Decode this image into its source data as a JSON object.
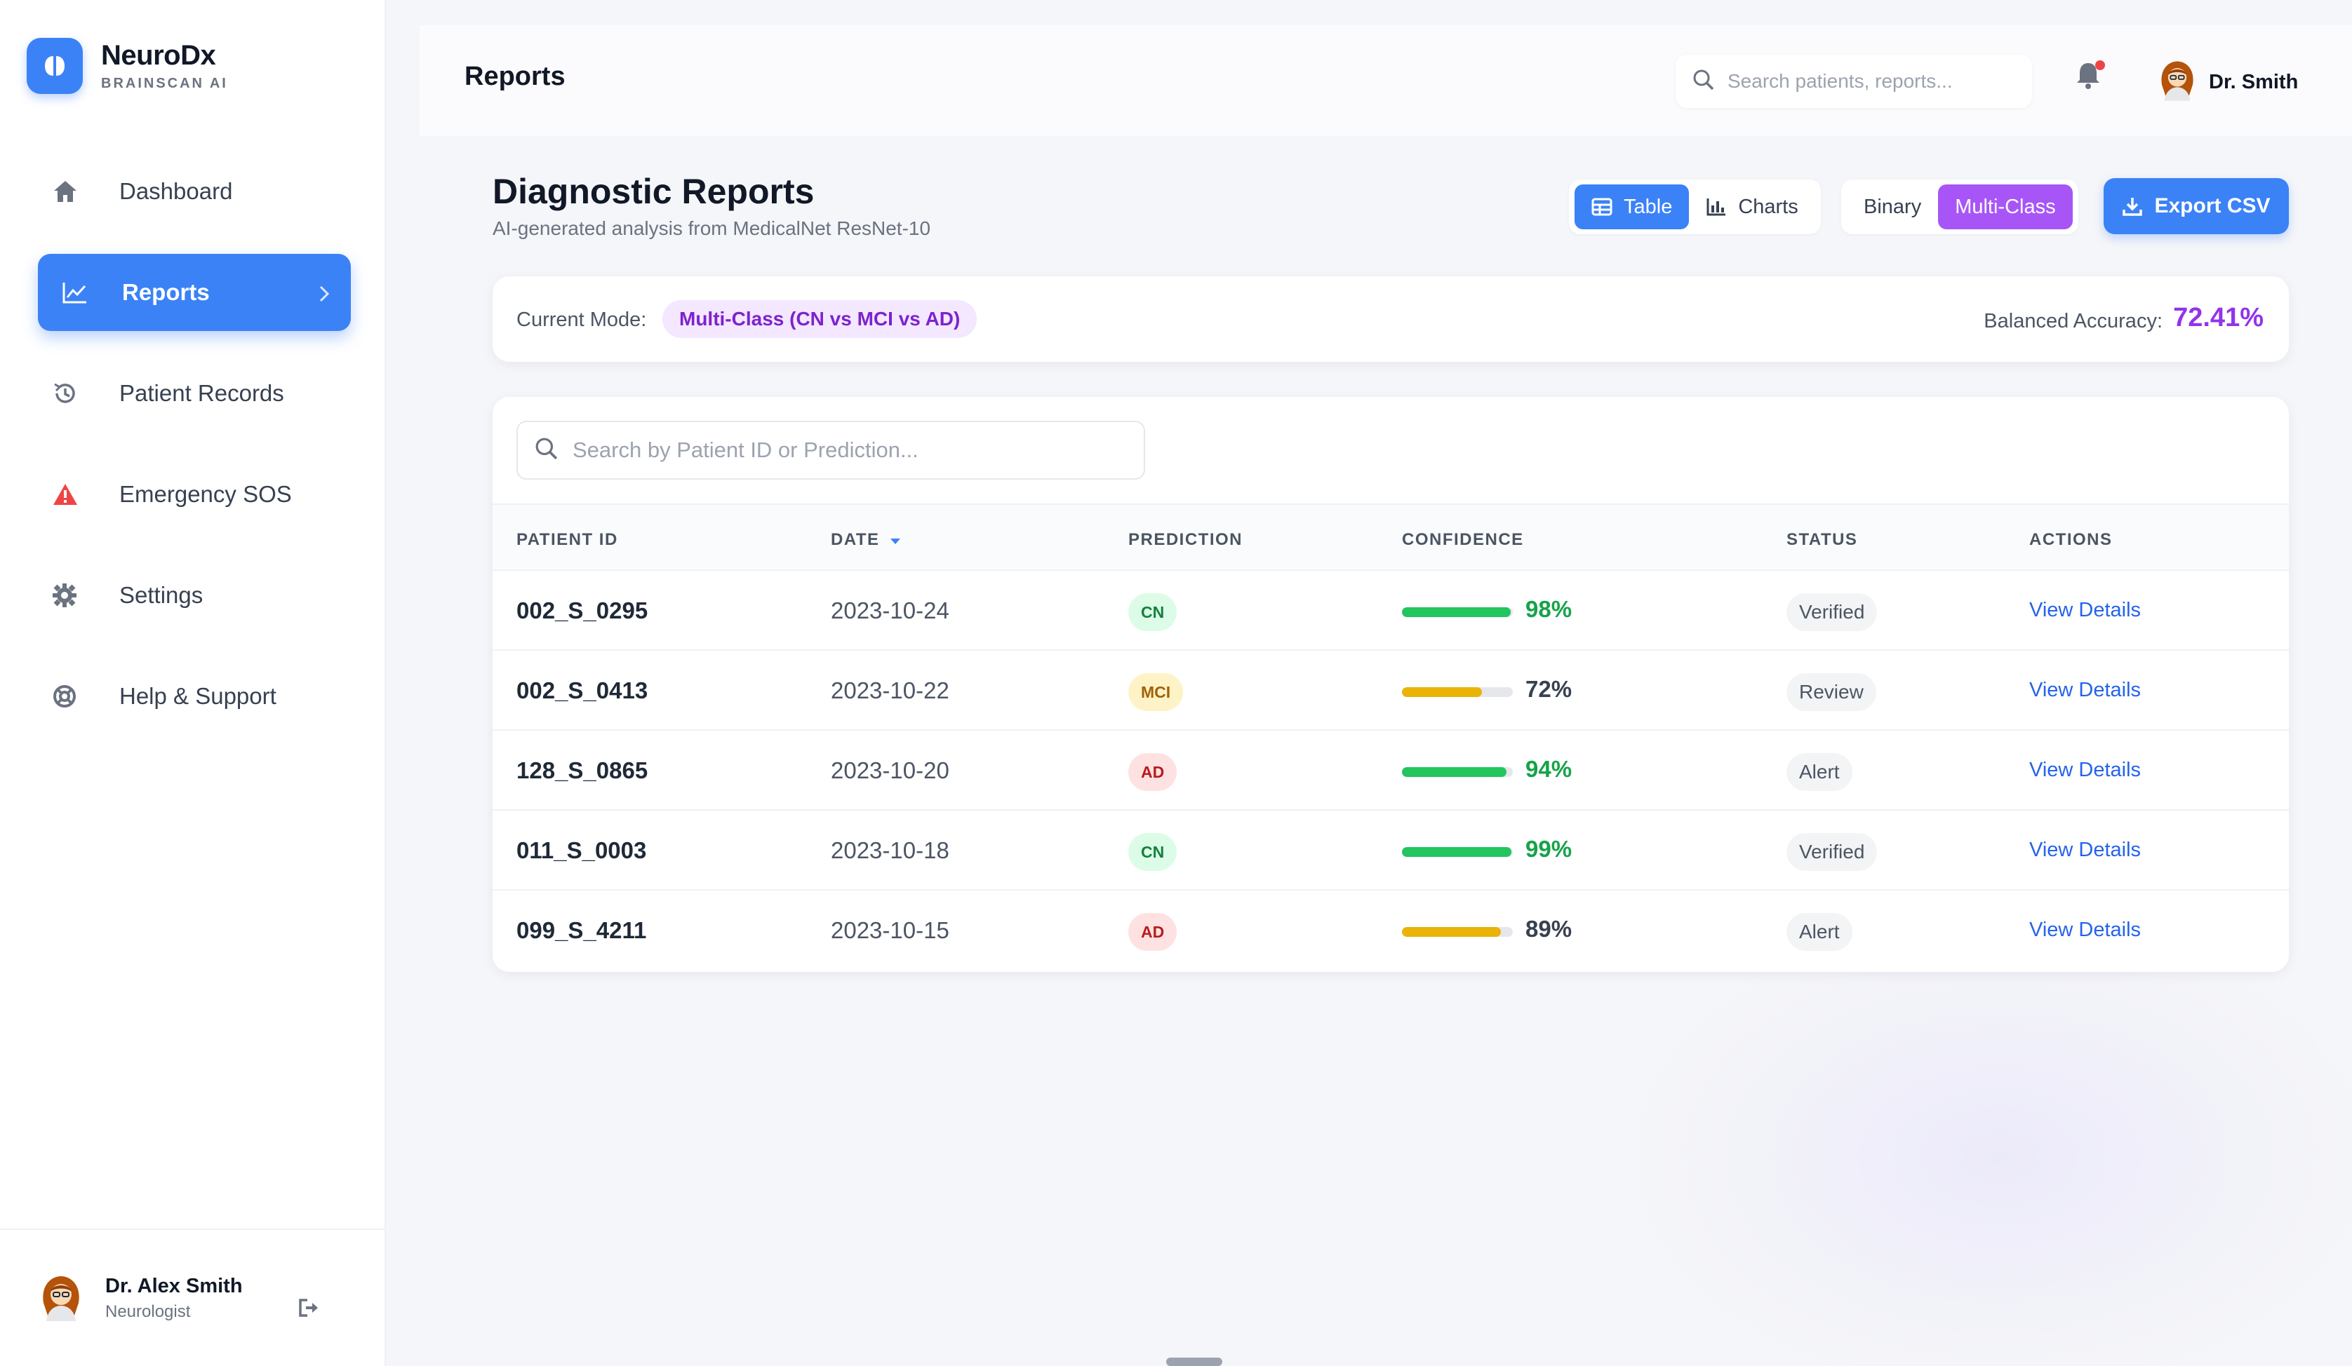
{
  "brand": {
    "name": "NeuroDx",
    "subtitle": "BRAINSCAN AI",
    "accent": "#3b82f6"
  },
  "sidebar": {
    "items": [
      {
        "label": "Dashboard",
        "icon": "home-icon",
        "active": false
      },
      {
        "label": "Reports",
        "icon": "chart-line-icon",
        "active": true
      },
      {
        "label": "Patient Records",
        "icon": "history-icon",
        "active": false
      },
      {
        "label": "Emergency SOS",
        "icon": "warning-icon",
        "active": false
      },
      {
        "label": "Settings",
        "icon": "gear-icon",
        "active": false
      },
      {
        "label": "Help & Support",
        "icon": "lifebuoy-icon",
        "active": false
      }
    ],
    "user": {
      "name": "Dr. Alex Smith",
      "role": "Neurologist"
    }
  },
  "header": {
    "title": "Reports",
    "search_placeholder": "Search patients, reports...",
    "user_name": "Dr. Smith"
  },
  "main": {
    "title": "Diagnostic Reports",
    "subtitle": "AI-generated analysis from MedicalNet ResNet-10",
    "view_toggle": {
      "table": "Table",
      "charts": "Charts",
      "selected": "Table"
    },
    "mode_toggle": {
      "binary": "Binary",
      "multiclass": "Multi-Class",
      "selected": "Multi-Class"
    },
    "export_label": "Export CSV"
  },
  "mode": {
    "label": "Current Mode:",
    "value": "Multi-Class (CN vs MCI vs AD)",
    "accuracy_label": "Balanced Accuracy:",
    "accuracy_value": "72.41%"
  },
  "table": {
    "search_placeholder": "Search by Patient ID or Prediction...",
    "headers": [
      "PATIENT ID",
      "DATE",
      "PREDICTION",
      "CONFIDENCE",
      "STATUS",
      "ACTIONS"
    ],
    "rows": [
      {
        "id": "002_S_0295",
        "date": "2023-10-24",
        "prediction": "CN",
        "confidence": "98%",
        "confidence_value": 0.98,
        "level": "high",
        "status": "Verified",
        "action": "View Details"
      },
      {
        "id": "002_S_0413",
        "date": "2023-10-22",
        "prediction": "MCI",
        "confidence": "72%",
        "confidence_value": 0.72,
        "level": "medium",
        "status": "Review",
        "action": "View Details"
      },
      {
        "id": "128_S_0865",
        "date": "2023-10-20",
        "prediction": "AD",
        "confidence": "94%",
        "confidence_value": 0.94,
        "level": "high",
        "status": "Alert",
        "action": "View Details"
      },
      {
        "id": "011_S_0003",
        "date": "2023-10-18",
        "prediction": "CN",
        "confidence": "99%",
        "confidence_value": 0.99,
        "level": "high",
        "status": "Verified",
        "action": "View Details"
      },
      {
        "id": "099_S_4211",
        "date": "2023-10-15",
        "prediction": "AD",
        "confidence": "89%",
        "confidence_value": 0.89,
        "level": "medium",
        "status": "Alert",
        "action": "View Details"
      }
    ]
  },
  "colors": {
    "high_confidence": "#22c55e",
    "medium_confidence": "#eab308",
    "high_text": "#16a34a",
    "medium_text": "#374151",
    "purple": "#a855f7"
  }
}
